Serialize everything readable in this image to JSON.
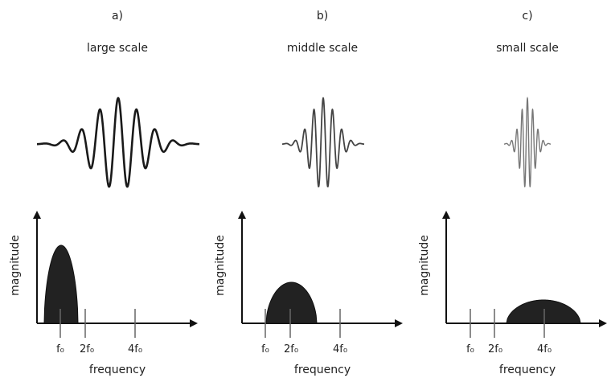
{
  "panels": [
    {
      "letter": "a)",
      "title": "large scale",
      "ylabel": "magnitude",
      "xlabel": "frequency",
      "ticks": [
        "f₀",
        "2f₀",
        "4f₀"
      ],
      "wavelet_line_color": "#1a1a1a"
    },
    {
      "letter": "b)",
      "title": "middle scale",
      "ylabel": "magnitude",
      "xlabel": "frequency",
      "ticks": [
        "f₀",
        "2f₀",
        "4f₀"
      ],
      "wavelet_line_color": "#444444"
    },
    {
      "letter": "c)",
      "title": "small scale",
      "ylabel": "magnitude",
      "xlabel": "frequency",
      "ticks": [
        "f₀",
        "2f₀",
        "4f₀"
      ],
      "wavelet_line_color": "#777777"
    }
  ],
  "colors": {
    "axis": "#111111",
    "fill": "#222222",
    "tick": "#666666"
  }
}
